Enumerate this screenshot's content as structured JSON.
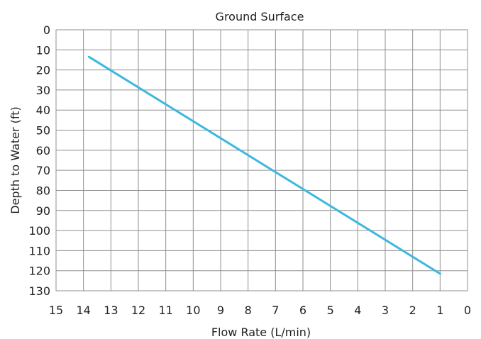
{
  "chart_data": {
    "type": "line",
    "title": "Ground Surface",
    "xlabel": "Flow Rate (L/min)",
    "ylabel": "Depth to Water (ft)",
    "x_reversed": true,
    "y_reversed": true,
    "xlim": [
      15,
      0
    ],
    "ylim": [
      0,
      130
    ],
    "x_ticks": [
      "15",
      "14",
      "13",
      "12",
      "11",
      "10",
      "9",
      "8",
      "7",
      "6",
      "5",
      "4",
      "3",
      "2",
      "1",
      "0"
    ],
    "y_ticks": [
      "0",
      "10",
      "20",
      "30",
      "40",
      "50",
      "60",
      "70",
      "80",
      "90",
      "100",
      "110",
      "120",
      "130"
    ],
    "grid": true,
    "series": [
      {
        "color": "#3cb8e0",
        "x": [
          13.8,
          1
        ],
        "y": [
          13.5,
          121.5
        ]
      }
    ]
  }
}
